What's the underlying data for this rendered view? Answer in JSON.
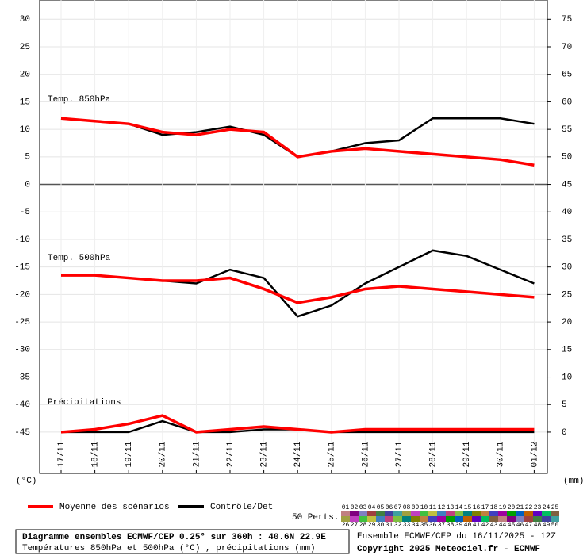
{
  "chart_data": {
    "type": "line",
    "categories": [
      "17/11",
      "18/11",
      "19/11",
      "20/11",
      "21/11",
      "22/11",
      "23/11",
      "24/11",
      "25/11",
      "26/11",
      "27/11",
      "28/11",
      "29/11",
      "30/11",
      "01/12"
    ],
    "ylim": [
      -52.5,
      33.5
    ],
    "yticks": [
      30,
      25,
      20,
      15,
      10,
      5,
      0,
      -5,
      -10,
      -15,
      -20,
      -25,
      -30,
      -35,
      -40,
      -45
    ],
    "y2lim": [
      -7.5,
      78.5
    ],
    "y2ticks": [
      75,
      70,
      65,
      60,
      55,
      50,
      45,
      40,
      35,
      30,
      25,
      20,
      15,
      10,
      5,
      0
    ],
    "y_unit": "(°C)",
    "y2_unit": "(mm)",
    "grid": true,
    "t850": {
      "label": "Temp. 850hPa",
      "mean": [
        12,
        11.5,
        11,
        9.5,
        9,
        10,
        9.5,
        5,
        6,
        6.5,
        6,
        5.5,
        5,
        4.5,
        3.5
      ],
      "control": [
        12,
        11.5,
        11,
        9,
        9.5,
        10.5,
        9,
        5,
        6,
        7.5,
        8,
        12,
        12,
        12,
        11
      ]
    },
    "t500": {
      "label": "Temp. 500hPa",
      "mean": [
        -16.5,
        -16.5,
        -17,
        -17.5,
        -17.5,
        -17,
        -19,
        -21.5,
        -20.5,
        -19,
        -18.5,
        -19,
        -19.5,
        -20,
        -20.5
      ],
      "control": [
        -16.5,
        -16.5,
        -17,
        -17.5,
        -18,
        -15.5,
        -17,
        -24,
        -22,
        -18,
        -15,
        -12,
        -13,
        -15.5,
        -18
      ]
    },
    "precip": {
      "label": "Précipitations",
      "axis": "y2",
      "mean": [
        0,
        0.5,
        1.5,
        3,
        0,
        0.5,
        1,
        0.5,
        0,
        0.5,
        0.5,
        0.5,
        0.5,
        0.5,
        0.5
      ],
      "control": [
        0,
        0,
        0,
        2,
        0,
        0,
        0.5,
        0.5,
        0,
        0,
        0,
        0,
        0,
        0,
        0
      ]
    },
    "legend": [
      {
        "name": "Moyenne des scénarios",
        "color": "#ff0000"
      },
      {
        "name": "Contrôle/Det",
        "color": "#000000"
      }
    ],
    "perts_label": "50 Perts.",
    "perts": [
      "01",
      "02",
      "03",
      "04",
      "05",
      "06",
      "07",
      "08",
      "09",
      "10",
      "11",
      "12",
      "13",
      "14",
      "15",
      "16",
      "17",
      "18",
      "19",
      "20",
      "21",
      "22",
      "23",
      "24",
      "25",
      "26",
      "27",
      "28",
      "29",
      "30",
      "31",
      "32",
      "33",
      "34",
      "35",
      "36",
      "37",
      "38",
      "39",
      "40",
      "41",
      "42",
      "43",
      "44",
      "45",
      "46",
      "47",
      "48",
      "49",
      "50"
    ],
    "footer": {
      "title": "Diagramme ensembles ECMWF/CEP 0.25° sur 360h : 40.6N 22.9E",
      "subtitle": "Températures 850hPa et 500hPa (°C) , précipitations (mm)",
      "run": "Ensemble ECMWF/CEP du 16/11/2025 - 12Z",
      "copyright": "Copyright 2025 Meteociel.fr - ECMWF"
    }
  }
}
